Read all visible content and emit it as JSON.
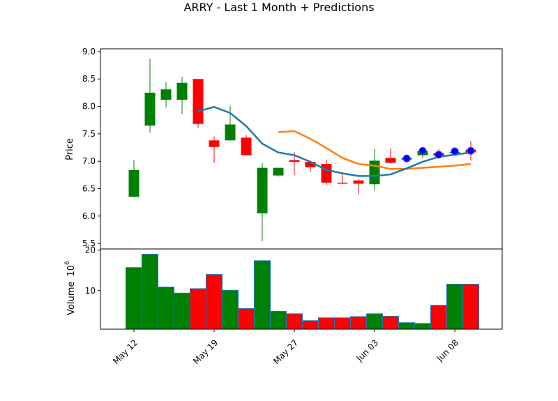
{
  "chart_data": [
    {
      "type": "candlestick",
      "title": "ARRY - Last 1 Month + Predictions",
      "ylabel": "Price",
      "ylim": [
        5.4,
        9.05
      ],
      "yticks": [
        "5.5",
        "6.0",
        "6.5",
        "7.0",
        "7.5",
        "8.0",
        "8.5",
        "9.0"
      ],
      "xticks": [
        "May 12",
        "May 19",
        "May 27",
        "Jun 03",
        "Jun 08"
      ],
      "colors": {
        "up": "#008000",
        "down": "#ff0000",
        "ma_fast": "#1f77b4",
        "ma_slow": "#ff7f0e",
        "prediction": "#0000ff"
      },
      "candles": [
        {
          "date": "May 12",
          "open": 6.35,
          "close": 6.84,
          "high": 7.02,
          "low": 6.35
        },
        {
          "date": "May 13",
          "open": 7.65,
          "close": 8.25,
          "high": 8.87,
          "low": 7.52
        },
        {
          "date": "May 14",
          "open": 8.12,
          "close": 8.31,
          "high": 8.44,
          "low": 7.98
        },
        {
          "date": "May 15",
          "open": 8.12,
          "close": 8.43,
          "high": 8.54,
          "low": 7.86
        },
        {
          "date": "May 16",
          "open": 8.5,
          "close": 7.68,
          "high": 8.5,
          "low": 7.6
        },
        {
          "date": "May 19",
          "open": 7.38,
          "close": 7.26,
          "high": 7.45,
          "low": 6.97
        },
        {
          "date": "May 20",
          "open": 7.38,
          "close": 7.67,
          "high": 8.01,
          "low": 7.38
        },
        {
          "date": "May 21",
          "open": 7.43,
          "close": 7.11,
          "high": 7.48,
          "low": 7.11
        },
        {
          "date": "May 22",
          "open": 6.05,
          "close": 6.88,
          "high": 6.97,
          "low": 5.54
        },
        {
          "date": "May 23",
          "open": 6.74,
          "close": 6.88,
          "high": 6.88,
          "low": 6.72
        },
        {
          "date": "May 27",
          "open": 7.02,
          "close": 6.99,
          "high": 7.17,
          "low": 6.75
        },
        {
          "date": "May 28",
          "open": 6.99,
          "close": 6.89,
          "high": 7.01,
          "low": 6.81
        },
        {
          "date": "May 29",
          "open": 6.95,
          "close": 6.61,
          "high": 7.03,
          "low": 6.57
        },
        {
          "date": "May 30",
          "open": 6.61,
          "close": 6.6,
          "high": 6.78,
          "low": 6.58
        },
        {
          "date": "Jun 02",
          "open": 6.65,
          "close": 6.59,
          "high": 6.67,
          "low": 6.4
        },
        {
          "date": "Jun 03",
          "open": 6.58,
          "close": 7.01,
          "high": 7.22,
          "low": 6.47
        },
        {
          "date": "Jun 04",
          "open": 7.06,
          "close": 6.97,
          "high": 7.24,
          "low": 6.95
        },
        {
          "date": "Jun 05",
          "open": 7.03,
          "close": 7.06,
          "high": 7.07,
          "low": 7.01
        },
        {
          "date": "Jun 06",
          "open": 7.11,
          "close": 7.19,
          "high": 7.23,
          "low": 7.05
        },
        {
          "date": "Jun 07",
          "open": 7.15,
          "close": 7.1,
          "high": 7.22,
          "low": 7.08
        },
        {
          "date": "Jun 08",
          "open": 7.15,
          "close": 7.17,
          "high": 7.21,
          "low": 7.1
        },
        {
          "date": "Jun 09",
          "open": 7.21,
          "close": 7.16,
          "high": 7.37,
          "low": 7.01
        }
      ],
      "ma_fast": [
        null,
        null,
        null,
        null,
        7.91,
        7.99,
        7.88,
        7.64,
        7.32,
        7.16,
        7.11,
        6.99,
        6.84,
        6.78,
        6.73,
        6.73,
        6.76,
        6.87,
        6.99,
        7.08,
        7.12,
        7.16
      ],
      "ma_slow": [
        null,
        null,
        null,
        null,
        null,
        null,
        null,
        null,
        null,
        7.53,
        7.55,
        7.41,
        7.24,
        7.06,
        6.95,
        6.92,
        6.86,
        6.86,
        6.88,
        6.9,
        6.92,
        6.95
      ],
      "predictions": [
        null,
        null,
        null,
        null,
        null,
        null,
        null,
        null,
        null,
        null,
        null,
        null,
        null,
        null,
        null,
        null,
        null,
        7.05,
        7.19,
        7.12,
        7.18,
        7.19
      ]
    },
    {
      "type": "bar",
      "ylabel": "Volume",
      "ylabel_exponent": "10",
      "ylabel_exponent_power": "6",
      "ylim": [
        0.5,
        20.3
      ],
      "yticks": [
        "10",
        "20"
      ],
      "volumes": [
        15.7,
        19.0,
        10.9,
        9.4,
        10.5,
        14.0,
        10.1,
        5.6,
        17.4,
        4.9,
        4.3,
        2.6,
        3.3,
        3.3,
        3.6,
        4.3,
        3.7,
        2.1,
        1.9,
        6.4,
        11.6,
        11.6
      ]
    }
  ]
}
